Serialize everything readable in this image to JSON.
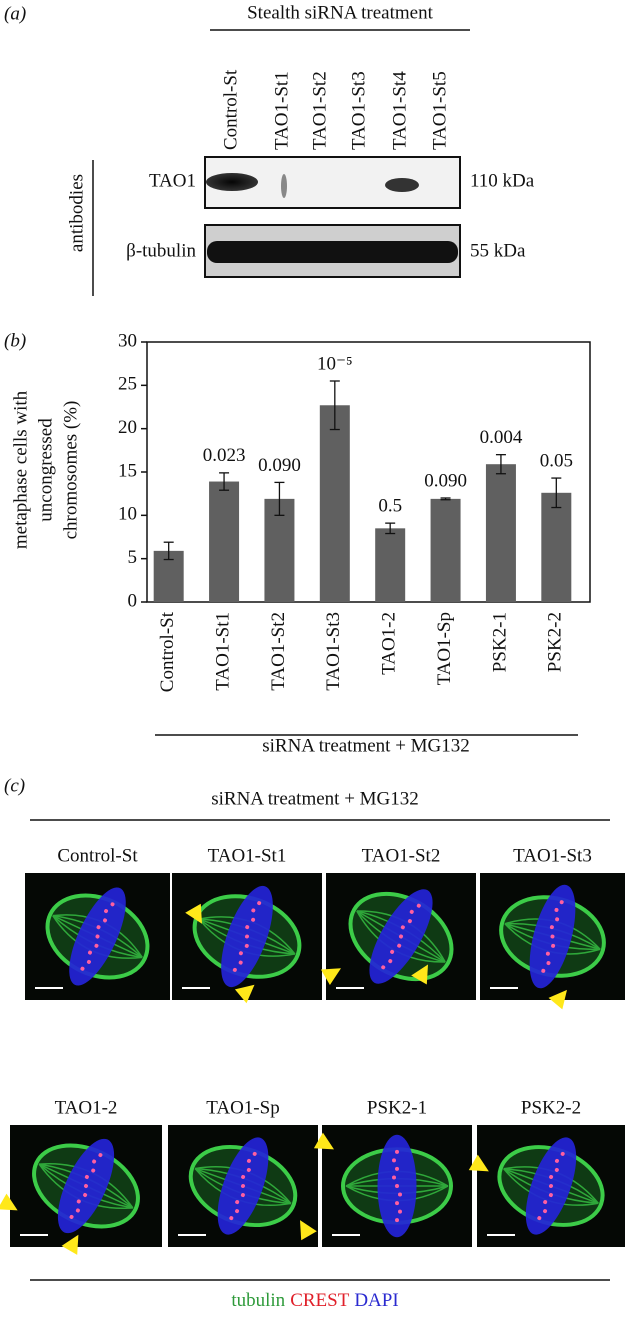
{
  "panel_a": {
    "label": "(a)",
    "heading": "Stealth siRNA treatment",
    "lanes": [
      "Control-St",
      "TAO1-St1",
      "TAO1-St2",
      "TAO1-St3",
      "TAO1-St4",
      "TAO1-St5"
    ],
    "group_label": "antibodies",
    "blots": [
      {
        "name": "TAO1",
        "size": "110 kDa"
      },
      {
        "name": "β-tubulin",
        "size": "55 kDa"
      }
    ]
  },
  "chart_data": {
    "type": "bar",
    "panel_label": "(b)",
    "y_label": [
      "metaphase cells with",
      "uncongressed",
      "chromosomes (%)"
    ],
    "x_label": "siRNA treatment + MG132",
    "categories": [
      "Control-St",
      "TAO1-St1",
      "TAO1-St2",
      "TAO1-St3",
      "TAO1-2",
      "TAO1-Sp",
      "PSK2-1",
      "PSK2-2"
    ],
    "values": [
      5.9,
      13.9,
      11.9,
      22.7,
      8.5,
      11.9,
      15.9,
      12.6
    ],
    "errors": [
      1.0,
      1.0,
      1.9,
      2.8,
      0.6,
      0.1,
      1.1,
      1.7
    ],
    "annotations": [
      null,
      "0.023",
      "0.090",
      "10⁻⁵",
      "0.5",
      "0.090",
      "0.004",
      "0.05"
    ],
    "color": "#606060",
    "ylim": [
      0,
      30
    ],
    "yticks": [
      0,
      5,
      10,
      15,
      20,
      25,
      30
    ]
  },
  "panel_c": {
    "label": "(c)",
    "heading": "siRNA treatment + MG132",
    "images": [
      "Control-St",
      "TAO1-St1",
      "TAO1-St2",
      "TAO1-St3",
      "TAO1-2",
      "TAO1-Sp",
      "PSK2-1",
      "PSK2-2"
    ],
    "legend": [
      {
        "text": "tubulin",
        "color": "#2e9a3a"
      },
      {
        "text": "CREST",
        "color": "#e0202a"
      },
      {
        "text": "DAPI",
        "color": "#2a2ad0"
      }
    ]
  }
}
